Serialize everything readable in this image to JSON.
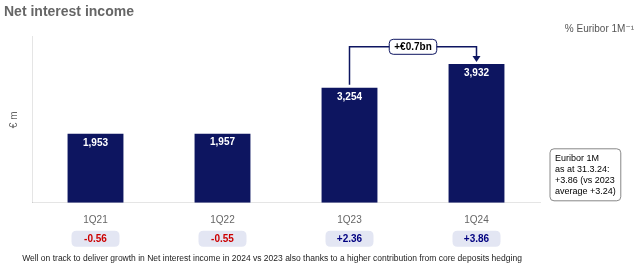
{
  "chart_data": {
    "type": "bar",
    "title": "Net interest income",
    "ylabel": "€ m",
    "categories": [
      "1Q21",
      "1Q22",
      "1Q23",
      "1Q24"
    ],
    "values": [
      1953,
      1957,
      3254,
      3932
    ],
    "value_labels": [
      "1,953",
      "1,957",
      "3,254",
      "3,932"
    ],
    "data_labels": true,
    "color": "#0d1560",
    "ylim": [
      0,
      4700
    ],
    "tick_labels": "x",
    "grid": false,
    "euribor_label": "% Euribor 1M⁻¹",
    "euribor_values": [
      -0.56,
      -0.55,
      2.36,
      3.86
    ],
    "euribor_value_labels": [
      "-0.56",
      "-0.55",
      "+2.36",
      "+3.86"
    ],
    "euribor_colors": [
      "#cc0000",
      "#cc0000",
      "#000080",
      "#000080"
    ],
    "annotations": [
      {
        "text": "+€0.7bn",
        "from": "1Q23",
        "to": "1Q24"
      },
      {
        "text": "Euribor 1M\nas at 31.3.24:\n+3.86 (vs 2023\naverage +3.24)"
      }
    ],
    "footnote": "Well on track to deliver growth in Net interest income in 2024 vs 2023 also thanks to a higher contribution from core deposits hedging"
  }
}
